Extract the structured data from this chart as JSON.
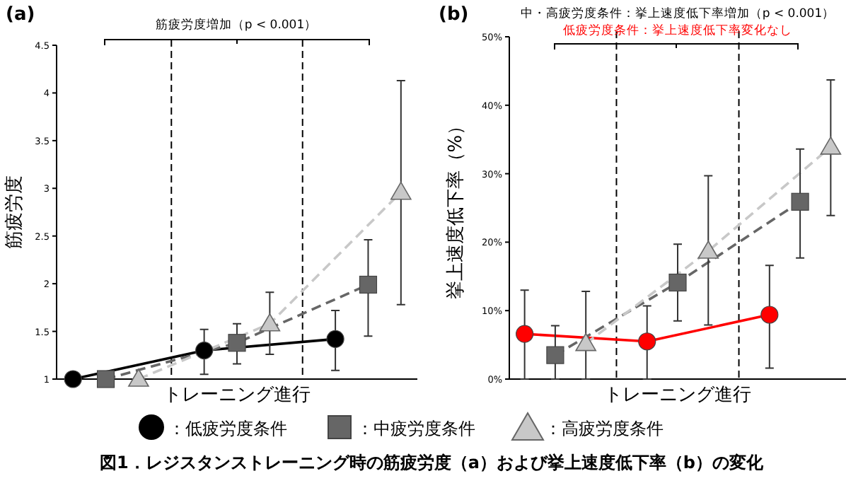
{
  "chart_data": [
    {
      "type": "line",
      "title": "(a)",
      "xlabel": "トレーニング進行",
      "ylabel": "筋疲労度",
      "annotations": [
        "筋疲労度増加（p < 0.001）"
      ],
      "categories": [
        null,
        null,
        null,
        null,
        null,
        null,
        null,
        null,
        null,
        null,
        null
      ],
      "series": [
        {
          "name": "：低疲労度条件",
          "color": "#000000",
          "marker": "circle",
          "line_style": "solid",
          "values": [
            1.0,
            null,
            null,
            null,
            1.3,
            null,
            null,
            null,
            1.42,
            null,
            null
          ],
          "errors": [
            null,
            null,
            null,
            null,
            [
              1.05,
              1.52
            ],
            null,
            null,
            null,
            [
              1.09,
              1.72
            ],
            null,
            null
          ]
        },
        {
          "name": "：中疲労度条件",
          "color": "#666666",
          "marker": "square",
          "line_style": "dashed",
          "values": [
            null,
            1.0,
            null,
            null,
            null,
            1.38,
            null,
            null,
            null,
            1.99,
            null
          ],
          "errors": [
            null,
            null,
            null,
            null,
            null,
            [
              1.16,
              1.58
            ],
            null,
            null,
            null,
            [
              1.45,
              2.46
            ],
            null
          ]
        },
        {
          "name": "：高疲労度条件",
          "color": "#c8c8c8",
          "marker": "triangle",
          "line_style": "dashed",
          "values": [
            null,
            null,
            1.0,
            null,
            null,
            null,
            1.58,
            null,
            null,
            null,
            2.96
          ],
          "errors": [
            null,
            null,
            null,
            null,
            null,
            null,
            [
              1.26,
              1.91
            ],
            null,
            null,
            null,
            [
              1.78,
              4.13
            ]
          ]
        }
      ],
      "ylim": [
        1,
        4.5
      ],
      "yticks": [
        1,
        1.5,
        2,
        2.5,
        3,
        3.5,
        4,
        4.5
      ],
      "legend": "bottom",
      "grid": false
    },
    {
      "type": "line",
      "title": "(b)",
      "xlabel": "トレーニング進行",
      "ylabel": "挙上速度低下率（%）",
      "annotations": [
        "中・高疲労度条件：挙上速度低下率増加（p < 0.001）",
        "低疲労度条件：挙上速度低下率変化なし",
        "図1．レジスタンストレーニング時の筋疲労度（a）および挙上速度低下率（b）の変化"
      ],
      "categories": [
        null,
        null,
        null,
        null,
        null,
        null,
        null,
        null,
        null,
        null,
        null
      ],
      "series": [
        {
          "color": "#ff0000",
          "marker": "circle",
          "line_style": "solid",
          "values": [
            6.6,
            null,
            null,
            null,
            5.5,
            null,
            null,
            null,
            9.4,
            null,
            null
          ],
          "errors": [
            [
              0,
              13.0
            ],
            null,
            null,
            null,
            [
              0,
              10.7
            ],
            null,
            null,
            null,
            [
              1.6,
              16.6
            ],
            null,
            null
          ]
        },
        {
          "color": "#666666",
          "marker": "square",
          "line_style": "dashed",
          "values": [
            null,
            3.5,
            null,
            null,
            null,
            14.1,
            null,
            null,
            null,
            25.9,
            null
          ],
          "errors": [
            null,
            [
              0,
              7.8
            ],
            null,
            null,
            null,
            [
              8.5,
              19.7
            ],
            null,
            null,
            null,
            [
              17.7,
              33.6
            ],
            null
          ]
        },
        {
          "color": "#c8c8c8",
          "marker": "triangle",
          "line_style": "dashed",
          "values": [
            null,
            null,
            5.2,
            null,
            null,
            null,
            18.7,
            null,
            null,
            null,
            33.9
          ],
          "errors": [
            null,
            null,
            [
              0,
              12.8
            ],
            null,
            null,
            null,
            [
              7.9,
              29.7
            ],
            null,
            null,
            null,
            [
              23.9,
              43.7
            ]
          ]
        }
      ],
      "ylim": [
        0,
        50
      ],
      "yticks": [
        {
          "value": 0,
          "label": "0%"
        },
        {
          "value": 10,
          "label": "10%"
        },
        {
          "value": 20,
          "label": "20%"
        },
        {
          "value": 30,
          "label": "30%"
        },
        {
          "value": 40,
          "label": "40%"
        },
        {
          "value": 50,
          "label": "50%"
        }
      ],
      "grid": false
    }
  ]
}
